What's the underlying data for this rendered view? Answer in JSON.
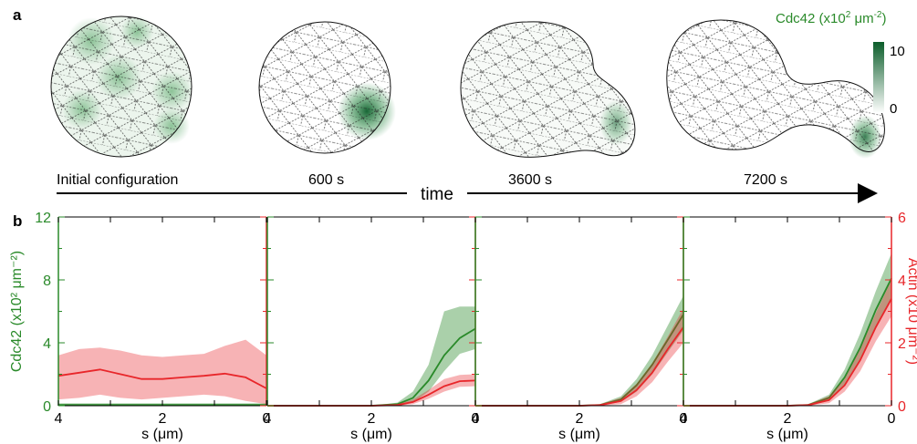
{
  "panel_a": {
    "label": "a",
    "colorbar": {
      "title_prefix": "Cdc42 (x10",
      "title_sup1": "2",
      "title_mid": " μm",
      "title_sup2": "-2",
      "title_suffix": ")",
      "max": "10",
      "min": "0"
    },
    "snapshots": [
      "Initial configuration",
      "600 s",
      "3600 s",
      "7200 s"
    ],
    "time_label": "time"
  },
  "panel_b": {
    "label": "b"
  },
  "chart_data": [
    {
      "type": "line",
      "xlabel": "s (μm)",
      "xlim": [
        4,
        0
      ],
      "xticks": [
        "4",
        "2",
        "0"
      ],
      "ylabel_left": "Cdc42 (x10² μm⁻²)",
      "ylim_left": [
        0,
        12
      ],
      "yticks_left": [
        "0",
        "4",
        "8",
        "12"
      ],
      "ylim_right": [
        0,
        6
      ],
      "series": [
        {
          "color": "#2a8a2a",
          "axis": "left",
          "x": [
            4,
            3,
            2,
            1,
            0
          ],
          "y": [
            0.05,
            0.05,
            0.05,
            0.05,
            0.05
          ],
          "lower": [
            0,
            0,
            0,
            0,
            0
          ],
          "upper": [
            0.15,
            0.15,
            0.15,
            0.15,
            0.15
          ]
        },
        {
          "color": "#e8262a",
          "axis": "right",
          "x": [
            4,
            3.6,
            3.2,
            2.8,
            2.4,
            2.0,
            1.6,
            1.2,
            0.8,
            0.4,
            0
          ],
          "y": [
            0.95,
            1.05,
            1.15,
            1.0,
            0.85,
            0.85,
            0.9,
            0.95,
            1.02,
            0.9,
            0.55
          ],
          "lower": [
            0.2,
            0.25,
            0.35,
            0.25,
            0.2,
            0.25,
            0.3,
            0.35,
            0.3,
            0.15,
            0.05
          ],
          "upper": [
            1.6,
            1.8,
            1.85,
            1.75,
            1.6,
            1.55,
            1.6,
            1.65,
            1.9,
            2.1,
            1.6
          ]
        }
      ]
    },
    {
      "type": "line",
      "xlabel": "s (μm)",
      "xlim": [
        4,
        0
      ],
      "xticks": [
        "4",
        "2",
        "0"
      ],
      "ylim_left": [
        0,
        12
      ],
      "ylim_right": [
        0,
        6
      ],
      "series": [
        {
          "color": "#2a8a2a",
          "axis": "left",
          "x": [
            4,
            2,
            1.5,
            1.2,
            0.9,
            0.6,
            0.3,
            0
          ],
          "y": [
            0,
            0,
            0.1,
            0.5,
            1.6,
            3.2,
            4.3,
            4.9
          ],
          "lower": [
            0,
            0,
            0,
            0.2,
            0.9,
            2.2,
            3.3,
            3.6
          ],
          "upper": [
            0,
            0,
            0.2,
            0.9,
            2.6,
            6.0,
            6.3,
            6.3
          ]
        },
        {
          "color": "#e8262a",
          "axis": "right",
          "x": [
            4,
            2,
            1.5,
            1.2,
            0.9,
            0.6,
            0.3,
            0
          ],
          "y": [
            0,
            0,
            0.02,
            0.12,
            0.35,
            0.62,
            0.78,
            0.8
          ],
          "lower": [
            0,
            0,
            0,
            0.05,
            0.22,
            0.45,
            0.6,
            0.62
          ],
          "upper": [
            0,
            0,
            0.05,
            0.2,
            0.5,
            0.85,
            0.98,
            1.0
          ]
        }
      ]
    },
    {
      "type": "line",
      "xlabel": "s (μm)",
      "xlim": [
        4,
        0
      ],
      "xticks": [
        "4",
        "2",
        "0"
      ],
      "ylim_left": [
        0,
        12
      ],
      "ylim_right": [
        0,
        6
      ],
      "series": [
        {
          "color": "#2a8a2a",
          "axis": "left",
          "x": [
            4,
            2,
            1.6,
            1.2,
            0.9,
            0.6,
            0.3,
            0
          ],
          "y": [
            0,
            0,
            0.05,
            0.4,
            1.3,
            2.6,
            4.2,
            5.8
          ],
          "lower": [
            0,
            0,
            0,
            0.25,
            0.9,
            2.0,
            3.4,
            4.8
          ],
          "upper": [
            0,
            0,
            0.1,
            0.6,
            1.7,
            3.2,
            5.1,
            7.0
          ]
        },
        {
          "color": "#e8262a",
          "axis": "right",
          "x": [
            4,
            2,
            1.6,
            1.2,
            0.9,
            0.6,
            0.3,
            0
          ],
          "y": [
            0,
            0,
            0.02,
            0.15,
            0.5,
            1.05,
            1.8,
            2.5
          ],
          "lower": [
            0,
            0,
            0,
            0.05,
            0.3,
            0.75,
            1.4,
            2.0
          ],
          "upper": [
            0,
            0,
            0.05,
            0.25,
            0.7,
            1.35,
            2.2,
            3.1
          ]
        }
      ]
    },
    {
      "type": "line",
      "xlabel": "s (μm)",
      "xlim": [
        4,
        0
      ],
      "xticks": [
        "4",
        "2",
        "0"
      ],
      "ylabel_right": "Actin (x10 μm⁻²)",
      "ylim_right": [
        0,
        6
      ],
      "yticks_right": [
        "0",
        "2",
        "4",
        "6"
      ],
      "ylim_left": [
        0,
        12
      ],
      "series": [
        {
          "color": "#2a8a2a",
          "axis": "left",
          "x": [
            4,
            2,
            1.6,
            1.2,
            0.9,
            0.6,
            0.3,
            0
          ],
          "y": [
            0,
            0,
            0.05,
            0.5,
            1.8,
            3.7,
            6.1,
            8.1
          ],
          "lower": [
            0,
            0,
            0,
            0.3,
            1.3,
            2.9,
            5.0,
            6.7
          ],
          "upper": [
            0,
            0,
            0.1,
            0.7,
            2.3,
            4.6,
            7.3,
            9.7
          ]
        },
        {
          "color": "#e8262a",
          "axis": "right",
          "x": [
            4,
            2,
            1.6,
            1.2,
            0.9,
            0.6,
            0.3,
            0
          ],
          "y": [
            0,
            0,
            0.02,
            0.18,
            0.65,
            1.45,
            2.5,
            3.4
          ],
          "lower": [
            0,
            0,
            0,
            0.08,
            0.45,
            1.1,
            2.05,
            2.85
          ],
          "upper": [
            0,
            0,
            0.05,
            0.3,
            0.85,
            1.8,
            2.95,
            4.0
          ]
        }
      ]
    }
  ]
}
